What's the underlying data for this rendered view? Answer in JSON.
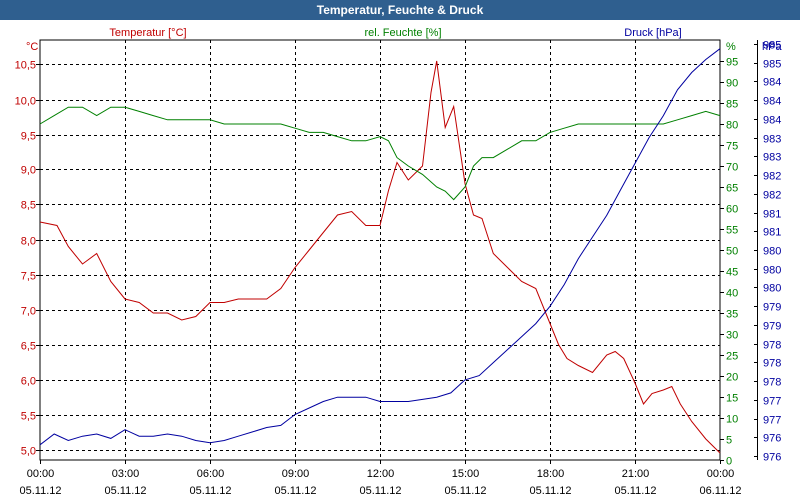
{
  "window": {
    "title": "Temperatur, Feuchte & Druck"
  },
  "chart_data": {
    "type": "line",
    "title": "Temperatur, Feuchte & Druck",
    "x": [
      "00:00",
      "03:00",
      "06:00",
      "09:00",
      "12:00",
      "15:00",
      "18:00",
      "21:00",
      "00:00"
    ],
    "x_dates": [
      "05.11.12",
      "05.11.12",
      "05.11.12",
      "05.11.12",
      "05.11.12",
      "05.11.12",
      "05.11.12",
      "05.11.12",
      "06.11.12"
    ],
    "x_range_hours": [
      0,
      24
    ],
    "grid": true,
    "axes": {
      "temperature": {
        "unit": "°C",
        "ticks": [
          "5,0",
          "5,5",
          "6,0",
          "6,5",
          "7,0",
          "7,5",
          "8,0",
          "8,5",
          "9,0",
          "9,5",
          "10,0",
          "10,5"
        ],
        "range": [
          4.85,
          10.85
        ],
        "color": "#c00000"
      },
      "humidity": {
        "unit": "%",
        "ticks": [
          "0",
          "5",
          "10",
          "15",
          "20",
          "25",
          "30",
          "35",
          "40",
          "45",
          "50",
          "55",
          "60",
          "65",
          "70",
          "75",
          "80",
          "85",
          "90",
          "95"
        ],
        "range": [
          0,
          100
        ],
        "color": "#008000"
      },
      "pressure": {
        "unit": "hPa",
        "ticks": [
          "976",
          "976",
          "977",
          "977",
          "978",
          "978",
          "978",
          "979",
          "979",
          "980",
          "980",
          "980",
          "981",
          "981",
          "982",
          "982",
          "983",
          "983",
          "984",
          "984",
          "984",
          "985",
          "985"
        ],
        "range": [
          975.65,
          985.35
        ],
        "color": "#0000a0"
      }
    },
    "series": [
      {
        "name": "Temperatur [°C]",
        "axis": "temperature",
        "color": "#c00000",
        "x": [
          0,
          0.6,
          1,
          1.5,
          2,
          2.5,
          3,
          3.5,
          4,
          4.5,
          5,
          5.5,
          6,
          6.5,
          7,
          7.5,
          8,
          8.5,
          9,
          9.5,
          10,
          10.5,
          11,
          11.5,
          12,
          12.3,
          12.6,
          13,
          13.5,
          13.8,
          14,
          14.3,
          14.6,
          15,
          15.3,
          15.6,
          16,
          16.5,
          17,
          17.5,
          18,
          18.3,
          18.6,
          19,
          19.5,
          20,
          20.3,
          20.6,
          21,
          21.3,
          21.6,
          22,
          22.3,
          22.6,
          23,
          23.5,
          24
        ],
        "values": [
          8.25,
          8.2,
          7.9,
          7.65,
          7.8,
          7.4,
          7.15,
          7.1,
          6.95,
          6.95,
          6.85,
          6.9,
          7.1,
          7.1,
          7.15,
          7.15,
          7.15,
          7.3,
          7.6,
          7.85,
          8.1,
          8.35,
          8.4,
          8.2,
          8.2,
          8.7,
          9.1,
          8.85,
          9.05,
          10.1,
          10.55,
          9.6,
          9.9,
          8.8,
          8.35,
          8.3,
          7.8,
          7.6,
          7.4,
          7.3,
          6.8,
          6.5,
          6.3,
          6.2,
          6.1,
          6.35,
          6.4,
          6.3,
          5.95,
          5.65,
          5.8,
          5.85,
          5.9,
          5.65,
          5.4,
          5.15,
          4.95
        ]
      },
      {
        "name": "rel. Feuchte [%]",
        "axis": "humidity",
        "color": "#008000",
        "x": [
          0,
          0.5,
          1,
          1.5,
          2,
          2.5,
          3,
          3.5,
          4,
          4.5,
          5,
          5.5,
          6,
          6.5,
          7,
          7.5,
          8,
          8.5,
          9,
          9.5,
          10,
          10.5,
          11,
          11.5,
          12,
          12.3,
          12.6,
          13,
          13.5,
          14,
          14.3,
          14.6,
          15,
          15.3,
          15.6,
          16,
          16.5,
          17,
          17.5,
          18,
          18.5,
          19,
          19.5,
          20,
          20.5,
          21,
          21.5,
          22,
          22.5,
          23,
          23.5,
          24
        ],
        "values": [
          80,
          82,
          84,
          84,
          82,
          84,
          84,
          83,
          82,
          81,
          81,
          81,
          81,
          80,
          80,
          80,
          80,
          80,
          79,
          78,
          78,
          77,
          76,
          76,
          77,
          76,
          72,
          70,
          68,
          65,
          64,
          62,
          65,
          70,
          72,
          72,
          74,
          76,
          76,
          78,
          79,
          80,
          80,
          80,
          80,
          80,
          80,
          80,
          81,
          82,
          83,
          82
        ]
      },
      {
        "name": "Druck [hPa]",
        "axis": "pressure",
        "color": "#0000a0",
        "x": [
          0,
          0.5,
          1,
          1.5,
          2,
          2.5,
          3,
          3.5,
          4,
          4.5,
          5,
          5.5,
          6,
          6.5,
          7,
          7.5,
          8,
          8.5,
          9,
          9.5,
          10,
          10.5,
          11,
          11.5,
          12,
          12.5,
          13,
          13.5,
          14,
          14.5,
          15,
          15.5,
          16,
          16.5,
          17,
          17.5,
          18,
          18.5,
          19,
          19.5,
          20,
          20.5,
          21,
          21.5,
          22,
          22.5,
          23,
          23.5,
          24
        ],
        "values": [
          976.0,
          976.25,
          976.1,
          976.2,
          976.25,
          976.15,
          976.35,
          976.2,
          976.2,
          976.25,
          976.2,
          976.1,
          976.05,
          976.1,
          976.2,
          976.3,
          976.4,
          976.45,
          976.7,
          976.85,
          977.0,
          977.1,
          977.1,
          977.1,
          977.0,
          977.0,
          977.0,
          977.05,
          977.1,
          977.2,
          977.5,
          977.6,
          977.9,
          978.2,
          978.5,
          978.8,
          979.2,
          979.7,
          980.3,
          980.8,
          981.3,
          981.9,
          982.5,
          983.1,
          983.6,
          984.2,
          984.6,
          984.9,
          985.15
        ]
      }
    ]
  },
  "labels": {
    "temp_unit": "°C",
    "hum_unit": "%",
    "press_unit": "hPa",
    "legend_temp": "Temperatur [°C]",
    "legend_hum": "rel. Feuchte [%]",
    "legend_press": "Druck [hPa]"
  }
}
